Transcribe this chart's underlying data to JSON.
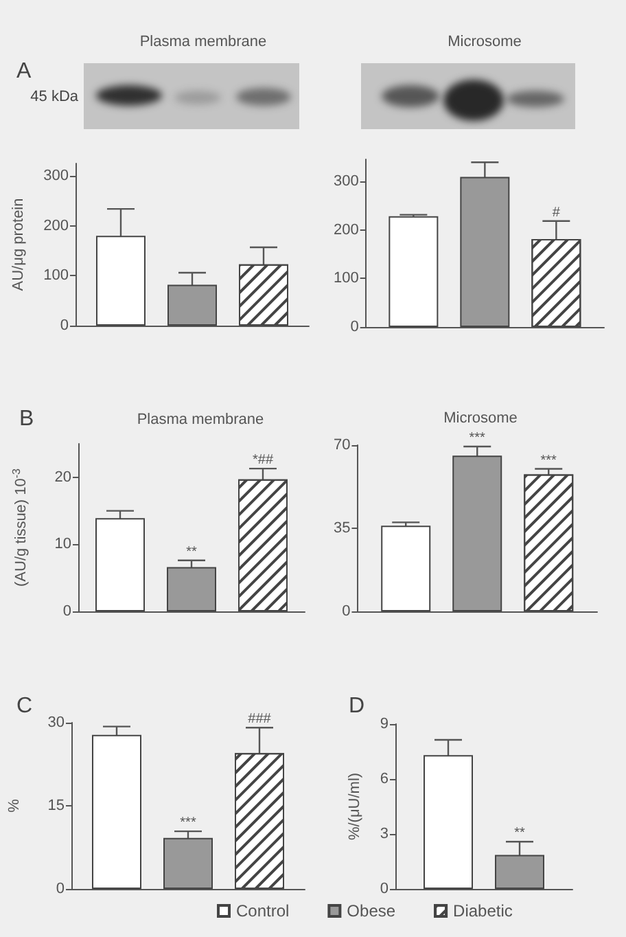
{
  "chart_data": [
    {
      "type": "bar",
      "title": "Plasma membrane",
      "ylabel": "AU/μg protein",
      "categories": [
        null
      ],
      "series": [
        {
          "color": "#ffffff",
          "values": [
            180
          ],
          "errors": [
            54
          ]
        },
        {
          "color": "#999999",
          "values": [
            82
          ],
          "errors": [
            24
          ]
        },
        {
          "color": "#444444",
          "values": [
            123
          ],
          "errors": [
            34
          ]
        }
      ],
      "ylim": [
        0,
        325
      ],
      "yticks": [
        0,
        100,
        200,
        300
      ],
      "annotations": [
        "A",
        "45 kDa"
      ]
    },
    {
      "type": "bar",
      "title": "Microsome",
      "categories": [
        null
      ],
      "series": [
        {
          "color": "#ffffff",
          "values": [
            228
          ],
          "errors": [
            3
          ]
        },
        {
          "color": "#999999",
          "values": [
            309
          ],
          "errors": [
            30
          ]
        },
        {
          "color": "#444444",
          "values": [
            181
          ],
          "errors": [
            37
          ],
          "value_labels": [
            "#"
          ]
        }
      ],
      "ylim": [
        0,
        345
      ],
      "yticks": [
        0,
        100,
        200,
        300
      ]
    },
    {
      "type": "bar",
      "title": "Plasma membrane",
      "ylabel": "(AU/g tissue) 10$^{-3}$",
      "categories": [
        null
      ],
      "series": [
        {
          "color": "#ffffff",
          "values": [
            13.9
          ],
          "errors": [
            1.1
          ]
        },
        {
          "color": "#999999",
          "values": [
            6.6
          ],
          "errors": [
            1.0
          ],
          "value_labels": [
            "**"
          ]
        },
        {
          "color": "#444444",
          "values": [
            19.7
          ],
          "errors": [
            1.6
          ],
          "value_labels": [
            "*##"
          ]
        }
      ],
      "ylim": [
        0,
        25
      ],
      "yticks": [
        0,
        10,
        20
      ],
      "annotations": [
        "B"
      ]
    },
    {
      "type": "bar",
      "title": "Microsome",
      "categories": [
        null
      ],
      "series": [
        {
          "color": "#ffffff",
          "values": [
            36.1
          ],
          "errors": [
            1.4
          ]
        },
        {
          "color": "#999999",
          "values": [
            65.6
          ],
          "errors": [
            3.8
          ],
          "value_labels": [
            "***"
          ]
        },
        {
          "color": "#444444",
          "values": [
            57.7
          ],
          "errors": [
            2.3
          ],
          "value_labels": [
            "***"
          ]
        }
      ],
      "ylim": [
        0,
        70
      ],
      "yticks": [
        0,
        35,
        70
      ]
    },
    {
      "type": "bar",
      "ylabel": "%",
      "categories": [
        null
      ],
      "series": [
        {
          "name": "Control",
          "color": "#ffffff",
          "values": [
            27.8
          ],
          "errors": [
            1.5
          ]
        },
        {
          "name": "Obese",
          "color": "#999999",
          "values": [
            9.2
          ],
          "errors": [
            1.2
          ],
          "value_labels": [
            "***"
          ]
        },
        {
          "name": "Diabetic",
          "color": "#444444",
          "values": [
            24.5
          ],
          "errors": [
            4.6
          ],
          "value_labels": [
            "###"
          ]
        }
      ],
      "ylim": [
        0,
        30
      ],
      "yticks": [
        0,
        15,
        30
      ],
      "legend": "bottom",
      "annotations": [
        "C"
      ]
    },
    {
      "type": "bar",
      "ylabel": "%/(μU/ml)",
      "categories": [
        null
      ],
      "series": [
        {
          "color": "#ffffff",
          "values": [
            7.3
          ],
          "errors": [
            0.84
          ]
        },
        {
          "color": "#999999",
          "values": [
            1.86
          ],
          "errors": [
            0.72
          ],
          "value_labels": [
            "**"
          ]
        }
      ],
      "ylim": [
        0,
        9
      ],
      "yticks": [
        0,
        3,
        6,
        9
      ],
      "annotations": [
        "D"
      ]
    }
  ]
}
